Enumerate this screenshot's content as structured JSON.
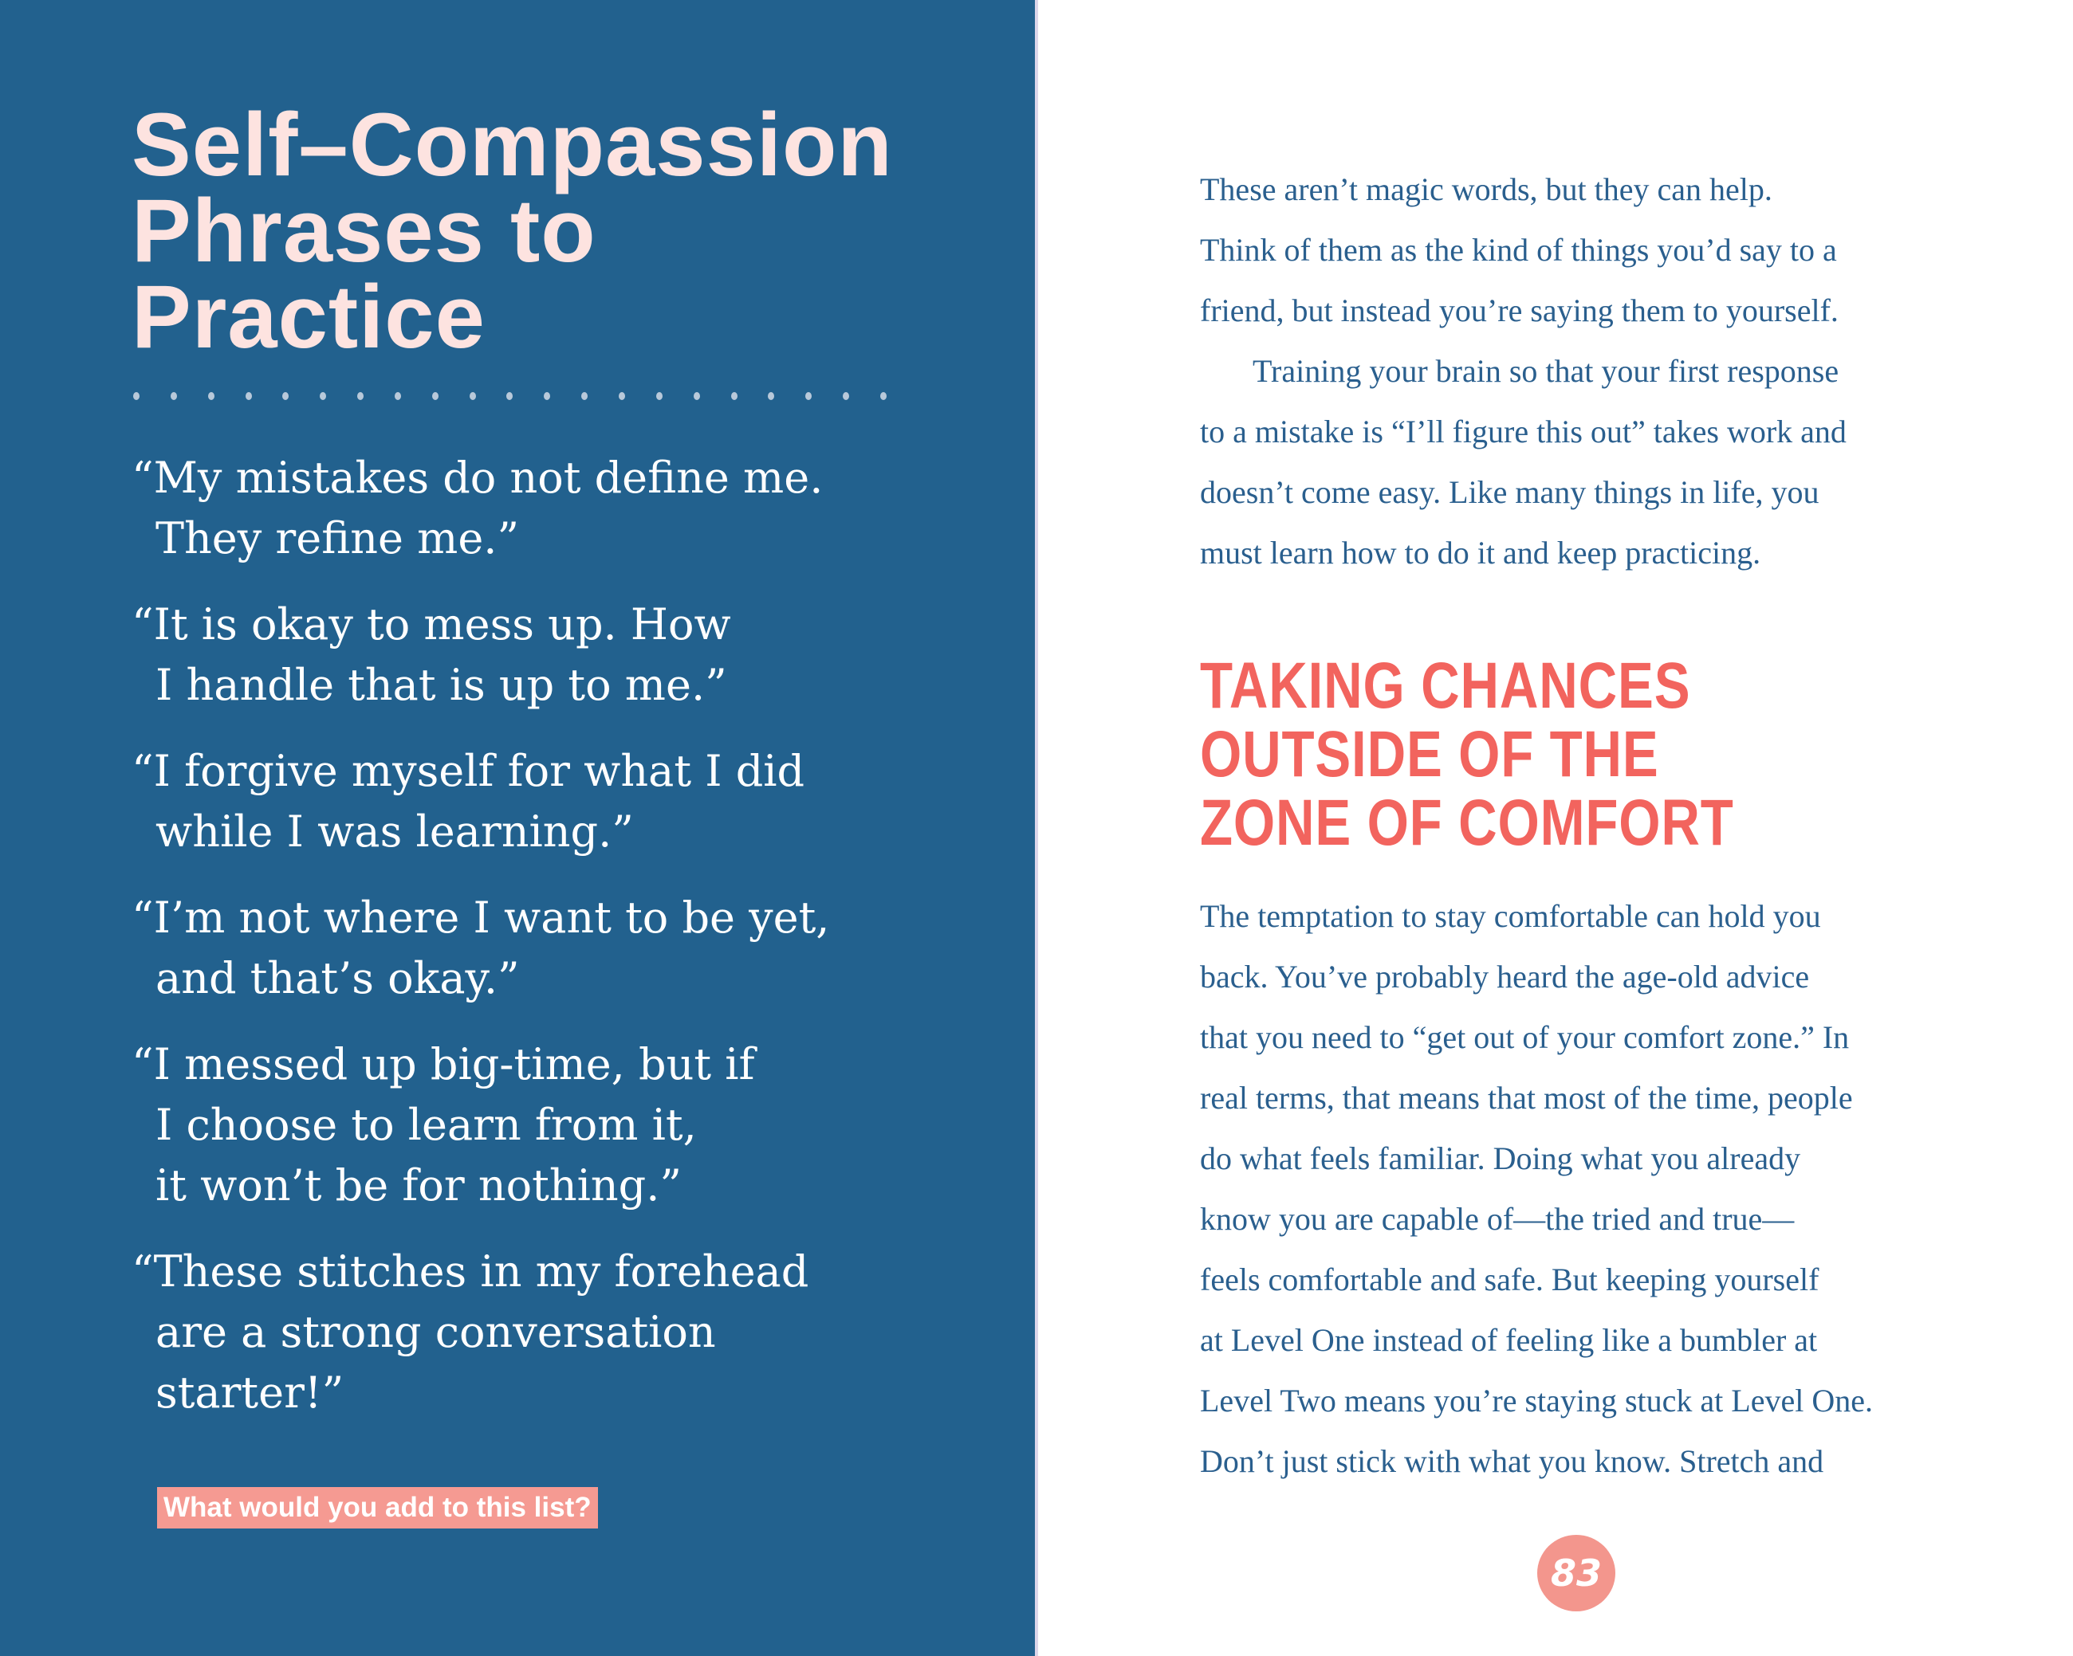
{
  "colors": {
    "left_panel": "#22618e",
    "title": "#fde3e0",
    "heading": "#f2645e",
    "badge": "#f59a92",
    "body_text": "#2a5f8e",
    "page_number": "#f3968d"
  },
  "left": {
    "title_lines": [
      "Self–Compassion",
      "Phrases to",
      "Practice"
    ],
    "quotes": [
      [
        "“My mistakes do not define me.",
        "They refine me.”"
      ],
      [
        "“It is okay to mess up. How",
        "I handle that is up to me.”"
      ],
      [
        "“I forgive myself for what I did",
        "while I was learning.”"
      ],
      [
        "“I’m not where I want to be yet,",
        "and that’s okay.”"
      ],
      [
        "“I messed up big-time, but if",
        "I choose to learn from it,",
        "it won’t be for nothing.”"
      ],
      [
        "“These stitches in my forehead",
        "are a strong conversation",
        "starter!”"
      ]
    ],
    "badge": "What would you add to this list?"
  },
  "right": {
    "paragraph1": [
      "These aren’t magic words, but they can help.",
      "Think of them as the kind of things you’d say to a",
      "friend, but instead you’re saying them to yourself."
    ],
    "paragraph2": [
      "Training your brain so that your first response",
      "to a mistake is “I’ll figure this out” takes work and",
      "doesn’t come easy. Like many things in life, you",
      "must learn how to do it and keep practicing."
    ],
    "heading_lines": [
      "TAKING CHANCES",
      "OUTSIDE OF THE",
      "ZONE OF COMFORT"
    ],
    "paragraph3": [
      "The temptation to stay comfortable can hold you",
      "back. You’ve probably heard the age-old advice",
      "that you need to “get out of your comfort zone.” In",
      "real terms, that means that most of the time, people",
      "do what feels familiar. Doing what you already",
      "know you are capable of—the tried and true—",
      "feels comfortable and safe. But keeping yourself",
      "at Level One instead of feeling like a bumbler at",
      "Level Two means you’re staying stuck at Level One.",
      "Don’t just stick with what you know. Stretch and"
    ],
    "page_number": "83"
  }
}
